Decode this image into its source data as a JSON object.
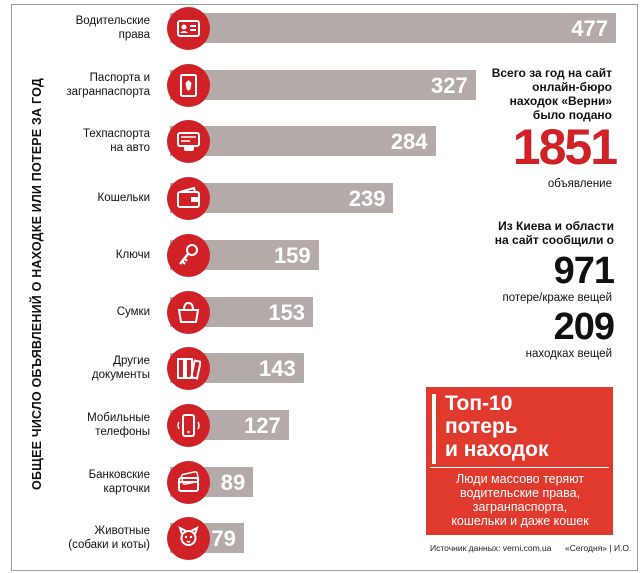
{
  "chart_data": {
    "type": "bar",
    "ylabel": "ОБЩЕЕ ЧИСЛО ОБЪЯВЛЕНИЙ О НАХОДКЕ ИЛИ ПОТЕРЕ ЗА ГОД",
    "categories": [
      {
        "line1": "Водительские",
        "line2": "права",
        "icon": "driver-license-icon"
      },
      {
        "line1": "Паспорта и",
        "line2": "загранпаспорта",
        "icon": "passport-icon"
      },
      {
        "line1": "Техпаспорта",
        "line2": "на авто",
        "icon": "car-registration-icon"
      },
      {
        "line1": "Кошельки",
        "line2": "",
        "icon": "wallet-icon"
      },
      {
        "line1": "Ключи",
        "line2": "",
        "icon": "keys-icon"
      },
      {
        "line1": "Сумки",
        "line2": "",
        "icon": "bag-icon"
      },
      {
        "line1": "Другие",
        "line2": "документы",
        "icon": "folders-icon"
      },
      {
        "line1": "Мобильные",
        "line2": "телефоны",
        "icon": "mobile-phone-icon"
      },
      {
        "line1": "Банковские",
        "line2": "карточки",
        "icon": "bank-card-icon"
      },
      {
        "line1": "Животные",
        "line2": "(собаки и коты)",
        "icon": "pet-icon"
      }
    ],
    "values": [
      477,
      327,
      284,
      239,
      159,
      153,
      143,
      127,
      89,
      79
    ],
    "xlim": [
      0,
      477
    ],
    "colors": {
      "bar": "#b4aaa8",
      "icon_bg": "#cf2126",
      "value_text": "#ffffff"
    }
  },
  "stats": {
    "total_l1": "Всего за год на сайт",
    "total_l2": "онлайн-бюро",
    "total_l3": "находок «Верни»",
    "total_l4": "было подано",
    "total_value": "1851",
    "total_unit": "объявление",
    "kyiv_l1": "Из Киева и области",
    "kyiv_l2": "на сайт сообщили о",
    "lost_value": "971",
    "lost_unit": "потере/краже вещей",
    "found_value": "209",
    "found_unit": "находках вещей"
  },
  "top_box": {
    "title_l1": "Топ-10",
    "title_l2": "потерь",
    "title_l3": "и находок",
    "desc_l1": "Люди массово теряют",
    "desc_l2": "водительские права,",
    "desc_l3": "загранпаспорта,",
    "desc_l4": "кошельки и даже кошек",
    "color": "#e03a2f"
  },
  "source": "Источник данных: verni.com.ua",
  "credit": "«Сегодня» | И.О."
}
